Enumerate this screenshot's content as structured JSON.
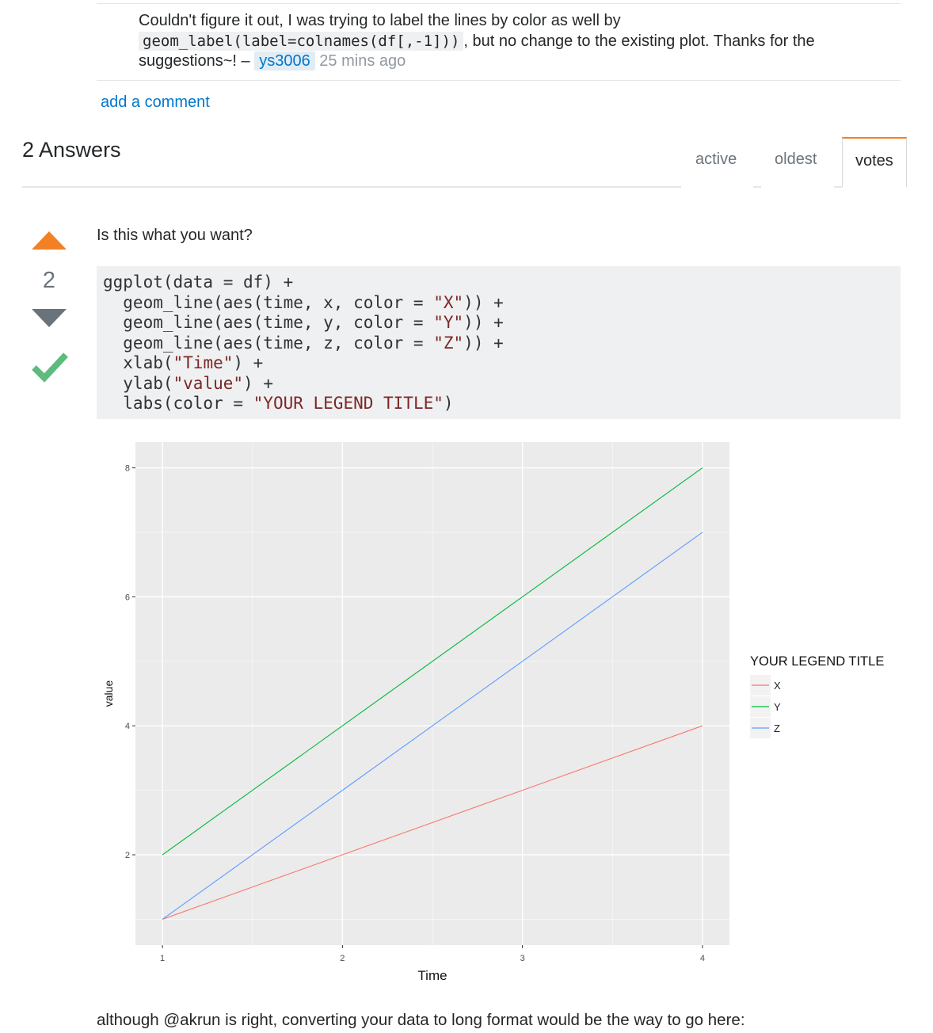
{
  "comment": {
    "text_before": "Couldn't figure it out, I was trying to label the lines by color as well by",
    "code": "geom_label(label=colnames(df[,-1])",
    "code_suffix": ")",
    "text_after": ", but no change to the existing plot. Thanks for the suggestions~!",
    "dash": " – ",
    "user": "ys3006",
    "time": "25 mins ago"
  },
  "add_comment_label": "add a comment",
  "answers": {
    "title": "2 Answers",
    "tabs": {
      "active": "active",
      "oldest": "oldest",
      "votes": "votes"
    },
    "selected_tab": "votes"
  },
  "answer": {
    "vote_count": "2",
    "accepted": true,
    "intro": "Is this what you want?",
    "code_lines": [
      [
        {
          "t": "ggplot(data = df) +",
          "s": ""
        }
      ],
      [
        {
          "t": "  geom_line(aes(time, x, color = ",
          "s": ""
        },
        {
          "t": "\"X\"",
          "s": "str"
        },
        {
          "t": ")) +",
          "s": ""
        }
      ],
      [
        {
          "t": "  geom_line(aes(time, y, color = ",
          "s": ""
        },
        {
          "t": "\"Y\"",
          "s": "str"
        },
        {
          "t": ")) +",
          "s": ""
        }
      ],
      [
        {
          "t": "  geom_line(aes(time, z, color = ",
          "s": ""
        },
        {
          "t": "\"Z\"",
          "s": "str"
        },
        {
          "t": ")) +",
          "s": ""
        }
      ],
      [
        {
          "t": "  xlab(",
          "s": ""
        },
        {
          "t": "\"Time\"",
          "s": "str"
        },
        {
          "t": ") +",
          "s": ""
        }
      ],
      [
        {
          "t": "  ylab(",
          "s": ""
        },
        {
          "t": "\"value\"",
          "s": "str"
        },
        {
          "t": ") +",
          "s": ""
        }
      ],
      [
        {
          "t": "  labs(color = ",
          "s": ""
        },
        {
          "t": "\"YOUR LEGEND TITLE\"",
          "s": "str"
        },
        {
          "t": ")",
          "s": ""
        }
      ]
    ],
    "footer": "although @akrun is right, converting your data to long format would be the way to go here:"
  },
  "chart_data": {
    "type": "line",
    "x": [
      1,
      2,
      3,
      4
    ],
    "x_ticks": [
      1,
      2,
      3,
      4
    ],
    "y_ticks": [
      2,
      4,
      6,
      8
    ],
    "xlim": [
      0.85,
      4.15
    ],
    "ylim": [
      0.6,
      8.4
    ],
    "xlabel": "Time",
    "ylabel": "value",
    "legend_title": "YOUR LEGEND TITLE",
    "legend_position": "right",
    "grid": true,
    "series": [
      {
        "name": "X",
        "values": [
          1,
          2,
          3,
          4
        ],
        "color": "#F8766D"
      },
      {
        "name": "Y",
        "values": [
          2,
          4,
          6,
          8
        ],
        "color": "#00BA38"
      },
      {
        "name": "Z",
        "values": [
          1,
          3,
          5,
          7
        ],
        "color": "#619CFF"
      }
    ],
    "panel_color": "#EBEBEB"
  }
}
